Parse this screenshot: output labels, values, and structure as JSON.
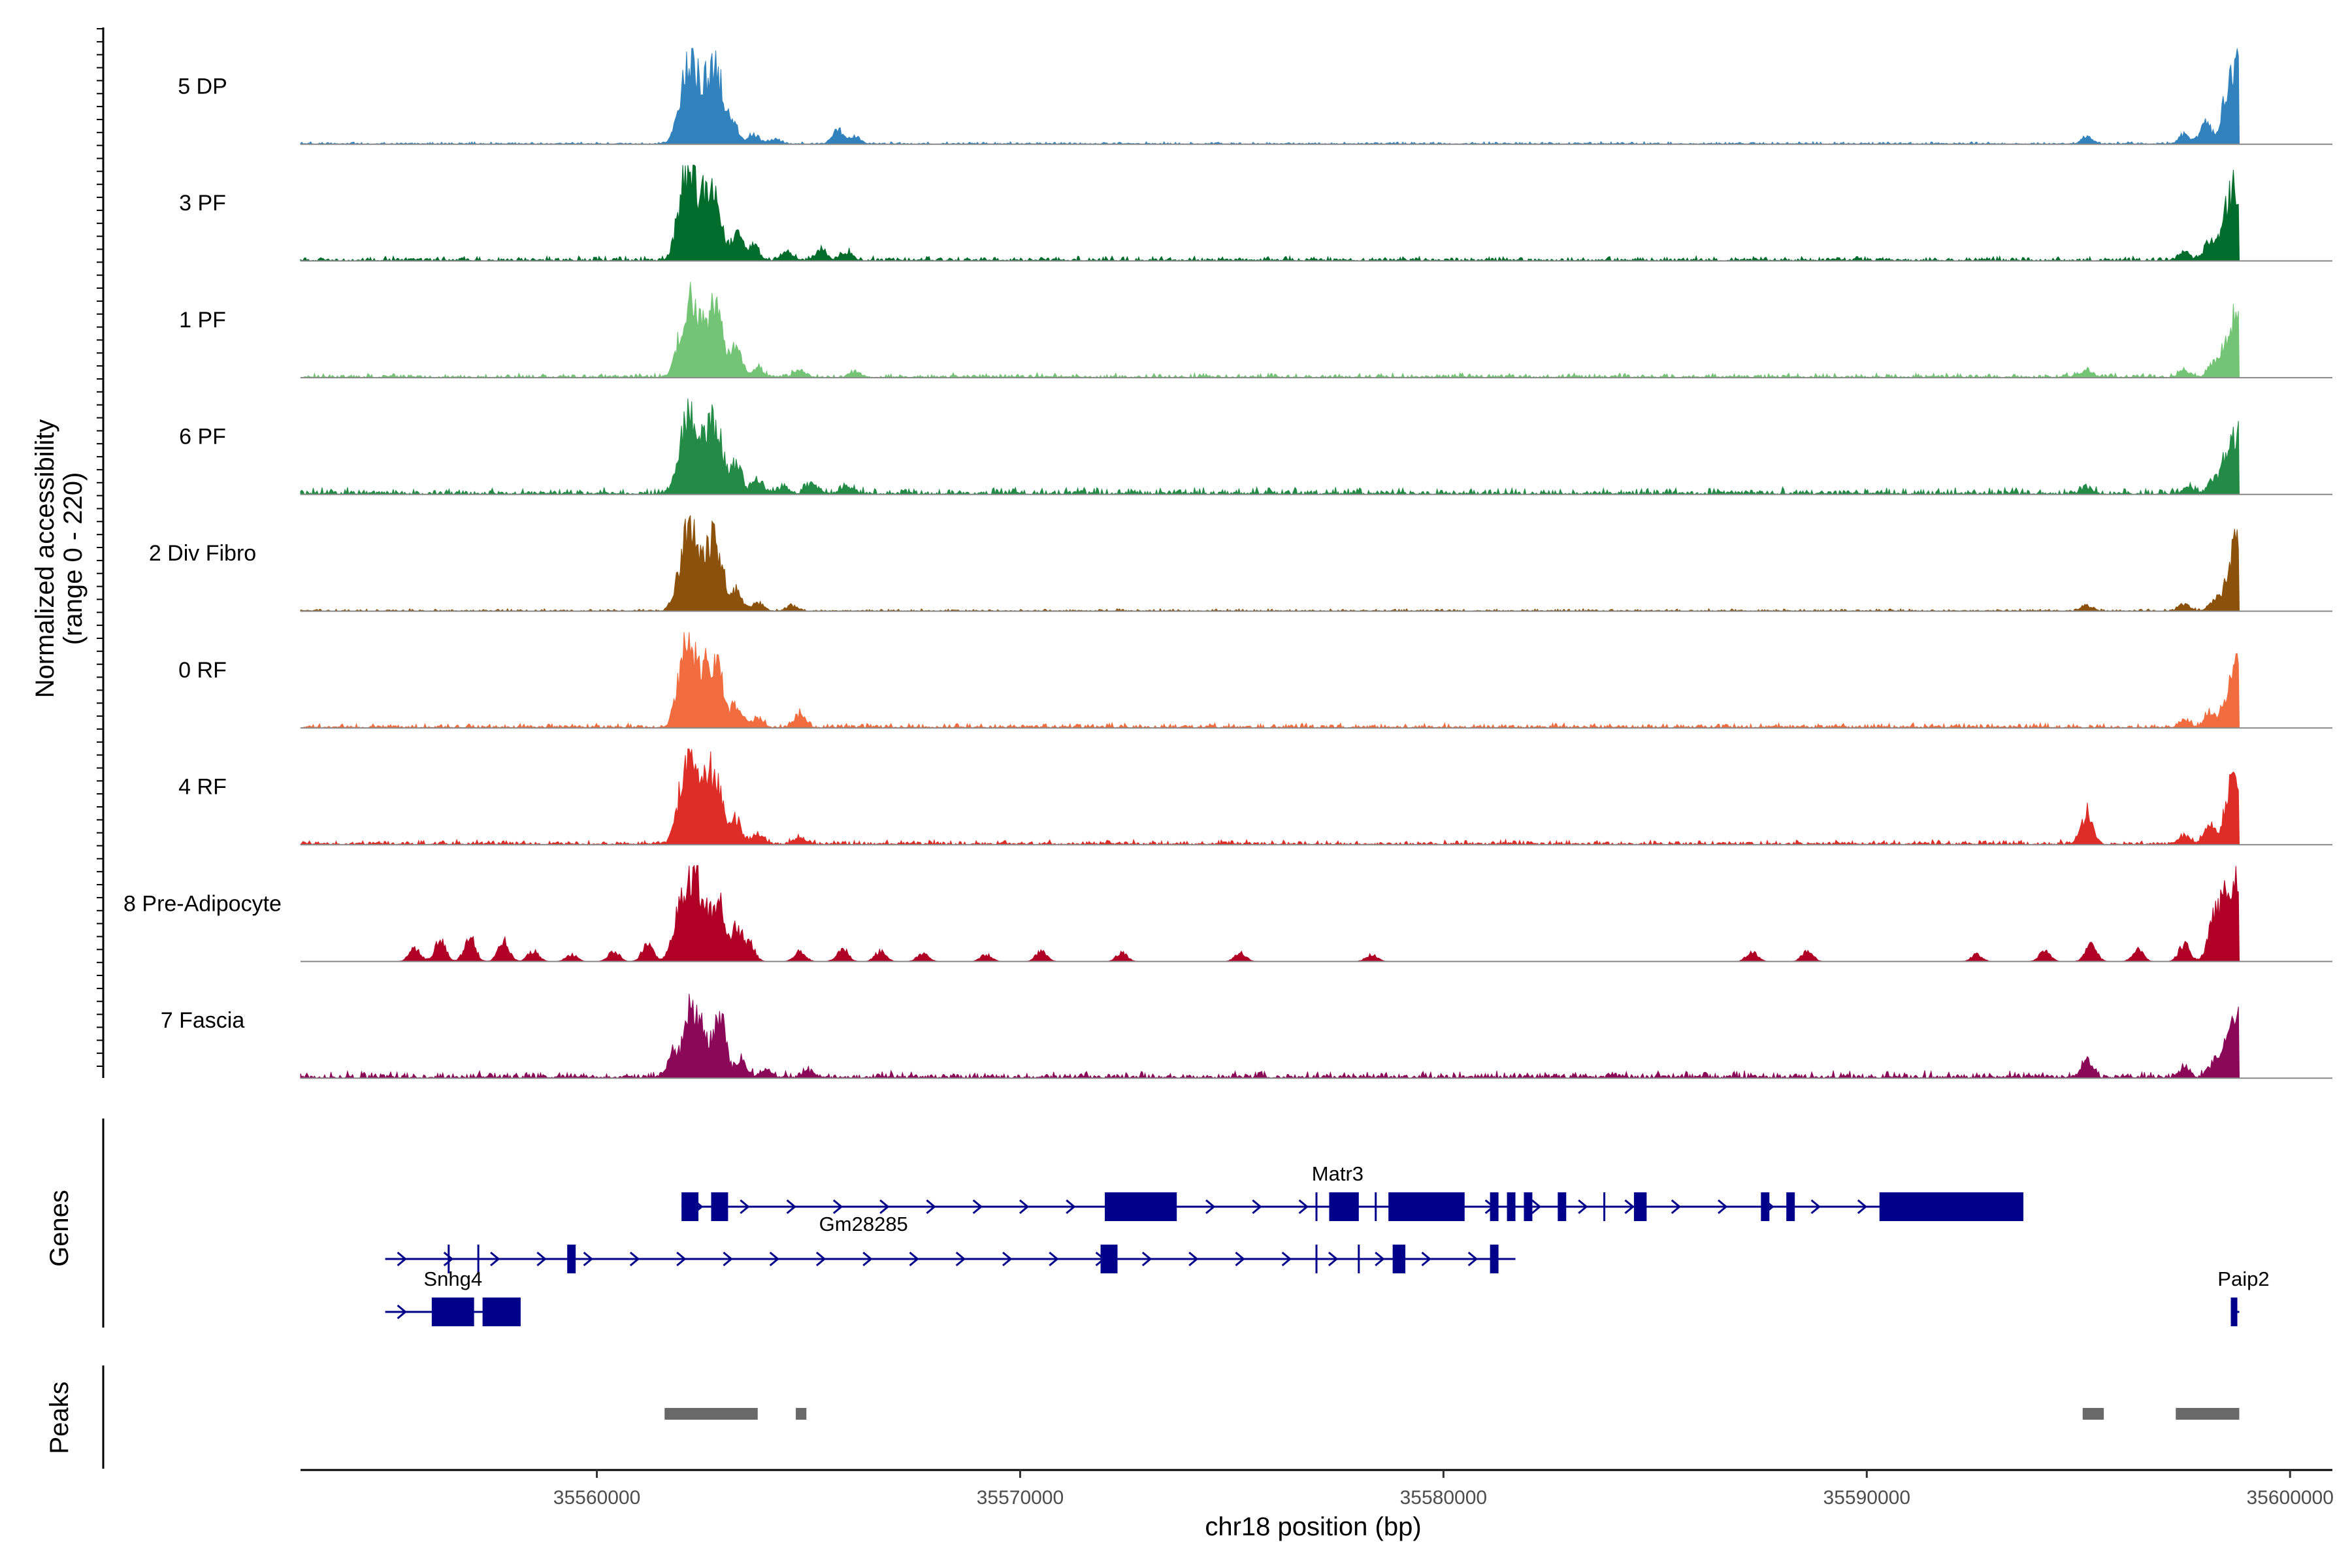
{
  "chart_data": {
    "type": "area",
    "title": "",
    "ylabel_line1": "Normalized accessibility",
    "ylabel_line2": "(range 0 - 220)",
    "ylim": [
      0,
      220
    ],
    "xlabel": "chr18 position (bp)",
    "xlim": [
      35553000,
      35601000
    ],
    "x_ticks": [
      35560000,
      35570000,
      35580000,
      35590000,
      35600000
    ],
    "x_tick_labels": [
      "35560000",
      "35570000",
      "35580000",
      "35590000",
      "35600000"
    ],
    "series": [
      {
        "name": "5 DP",
        "color": "#3182bd",
        "noise": 1,
        "peaks": [
          [
            35562000,
            120
          ],
          [
            35562270,
            210
          ],
          [
            35562600,
            140
          ],
          [
            35562850,
            180
          ],
          [
            35563200,
            70
          ],
          [
            35563700,
            30
          ],
          [
            35564200,
            15
          ],
          [
            35565700,
            40
          ],
          [
            35566100,
            20
          ],
          [
            35595200,
            20
          ],
          [
            35597500,
            30
          ],
          [
            35598000,
            60
          ],
          [
            35598500,
            110
          ],
          [
            35598750,
            200
          ]
        ]
      },
      {
        "name": "3 PF",
        "color": "#006d2c",
        "noise": 2,
        "peaks": [
          [
            35562000,
            130
          ],
          [
            35562200,
            190
          ],
          [
            35562500,
            150
          ],
          [
            35562800,
            170
          ],
          [
            35563300,
            80
          ],
          [
            35563700,
            45
          ],
          [
            35564500,
            25
          ],
          [
            35565300,
            30
          ],
          [
            35565900,
            25
          ],
          [
            35597500,
            25
          ],
          [
            35598100,
            60
          ],
          [
            35598500,
            110
          ],
          [
            35598750,
            180
          ]
        ]
      },
      {
        "name": "1 PF",
        "color": "#74c476",
        "noise": 2,
        "peaks": [
          [
            35562000,
            110
          ],
          [
            35562250,
            200
          ],
          [
            35562600,
            120
          ],
          [
            35562850,
            170
          ],
          [
            35563300,
            80
          ],
          [
            35563800,
            25
          ],
          [
            35564800,
            20
          ],
          [
            35566100,
            15
          ],
          [
            35595200,
            20
          ],
          [
            35597500,
            20
          ],
          [
            35598200,
            40
          ],
          [
            35598500,
            70
          ],
          [
            35598750,
            175
          ]
        ]
      },
      {
        "name": "6 PF",
        "color": "#238b45",
        "noise": 3,
        "peaks": [
          [
            35562000,
            120
          ],
          [
            35562250,
            180
          ],
          [
            35562600,
            130
          ],
          [
            35562850,
            170
          ],
          [
            35563300,
            80
          ],
          [
            35563800,
            40
          ],
          [
            35564400,
            20
          ],
          [
            35565100,
            30
          ],
          [
            35565900,
            20
          ],
          [
            35595200,
            20
          ],
          [
            35597600,
            20
          ],
          [
            35598200,
            40
          ],
          [
            35598500,
            80
          ],
          [
            35598750,
            160
          ]
        ]
      },
      {
        "name": "2 Div Fibro",
        "color": "#8c510a",
        "noise": 1,
        "peaks": [
          [
            35562000,
            120
          ],
          [
            35562250,
            210
          ],
          [
            35562600,
            130
          ],
          [
            35562850,
            165
          ],
          [
            35563300,
            60
          ],
          [
            35563800,
            25
          ],
          [
            35564600,
            15
          ],
          [
            35595200,
            15
          ],
          [
            35597500,
            20
          ],
          [
            35598200,
            30
          ],
          [
            35598500,
            50
          ],
          [
            35598750,
            200
          ]
        ]
      },
      {
        "name": "0 RF",
        "color": "#f16c3e",
        "noise": 2,
        "peaks": [
          [
            35562000,
            130
          ],
          [
            35562200,
            200
          ],
          [
            35562550,
            150
          ],
          [
            35562850,
            165
          ],
          [
            35563300,
            60
          ],
          [
            35563800,
            30
          ],
          [
            35564800,
            35
          ],
          [
            35597500,
            20
          ],
          [
            35598100,
            40
          ],
          [
            35598500,
            60
          ],
          [
            35598750,
            165
          ]
        ]
      },
      {
        "name": "4 RF",
        "color": "#de2d26",
        "noise": 2,
        "peaks": [
          [
            35562000,
            130
          ],
          [
            35562250,
            200
          ],
          [
            35562600,
            140
          ],
          [
            35562850,
            160
          ],
          [
            35563300,
            70
          ],
          [
            35563800,
            30
          ],
          [
            35564800,
            20
          ],
          [
            35595200,
            90
          ],
          [
            35597500,
            25
          ],
          [
            35598100,
            50
          ],
          [
            35598500,
            70
          ],
          [
            35598750,
            200
          ]
        ]
      },
      {
        "name": "8 Pre-Adipocyte",
        "color": "#b10026",
        "noise": 0,
        "peaks": [
          [
            35555700,
            40
          ],
          [
            35556300,
            60
          ],
          [
            35557000,
            70
          ],
          [
            35557800,
            60
          ],
          [
            35558500,
            30
          ],
          [
            35559400,
            20
          ],
          [
            35560400,
            30
          ],
          [
            35561200,
            50
          ],
          [
            35561900,
            110
          ],
          [
            35562200,
            200
          ],
          [
            35562450,
            160
          ],
          [
            35562850,
            180
          ],
          [
            35563300,
            100
          ],
          [
            35563600,
            50
          ],
          [
            35564800,
            30
          ],
          [
            35565800,
            40
          ],
          [
            35566700,
            30
          ],
          [
            35567700,
            25
          ],
          [
            35569200,
            20
          ],
          [
            35570500,
            30
          ],
          [
            35572400,
            25
          ],
          [
            35575200,
            25
          ],
          [
            35578300,
            20
          ],
          [
            35587300,
            30
          ],
          [
            35588600,
            30
          ],
          [
            35592600,
            20
          ],
          [
            35594200,
            30
          ],
          [
            35595300,
            50
          ],
          [
            35596400,
            35
          ],
          [
            35597500,
            50
          ],
          [
            35598200,
            110
          ],
          [
            35598500,
            150
          ],
          [
            35598750,
            190
          ]
        ]
      },
      {
        "name": "7 Fascia",
        "color": "#8b0758",
        "noise": 3,
        "peaks": [
          [
            35561800,
            60
          ],
          [
            35562200,
            190
          ],
          [
            35562500,
            110
          ],
          [
            35562900,
            160
          ],
          [
            35563400,
            50
          ],
          [
            35564000,
            20
          ],
          [
            35565000,
            20
          ],
          [
            35595200,
            50
          ],
          [
            35597500,
            25
          ],
          [
            35598200,
            40
          ],
          [
            35598500,
            80
          ],
          [
            35598750,
            170
          ]
        ]
      }
    ],
    "genes": [
      {
        "name": "Matr3",
        "row": 0,
        "start": 35562000,
        "end": 35593700,
        "exons": [
          [
            35562000,
            35562400
          ],
          [
            35562700,
            35563100
          ],
          [
            35572000,
            35573700
          ],
          [
            35577300,
            35578000
          ],
          [
            35578700,
            35580500
          ],
          [
            35581100,
            35581300
          ],
          [
            35581500,
            35581700
          ],
          [
            35581900,
            35582100
          ],
          [
            35582700,
            35582900
          ],
          [
            35584500,
            35584800
          ],
          [
            35587500,
            35587700
          ],
          [
            35588100,
            35588300
          ],
          [
            35590300,
            35593700
          ]
        ],
        "introns": [
          35577000,
          35578400,
          35583800
        ]
      },
      {
        "name": "Gm28285",
        "row": 1,
        "start": 35555000,
        "end": 35581700,
        "exons": [
          [
            35559300,
            35559500
          ],
          [
            35571900,
            35572300
          ],
          [
            35578800,
            35579100
          ],
          [
            35581100,
            35581300
          ]
        ],
        "introns": [
          35556500,
          35557200,
          35577000,
          35578000
        ]
      },
      {
        "name": "Snhg4",
        "row": 2,
        "start": 35555000,
        "end": 35558200,
        "exons": [
          [
            35556100,
            35557100
          ],
          [
            35557300,
            35558200
          ]
        ],
        "introns": []
      },
      {
        "name": "Paip2",
        "row": 2,
        "start": 35598600,
        "end": 35598800,
        "exons": [
          [
            35598600,
            35598750
          ]
        ],
        "introns": []
      }
    ],
    "peaks": [
      [
        35561600,
        35563800
      ],
      [
        35564700,
        35564950
      ],
      [
        35595100,
        35595600
      ],
      [
        35597300,
        35598800
      ]
    ],
    "panel_labels": [
      "Genes",
      "Peaks"
    ]
  }
}
